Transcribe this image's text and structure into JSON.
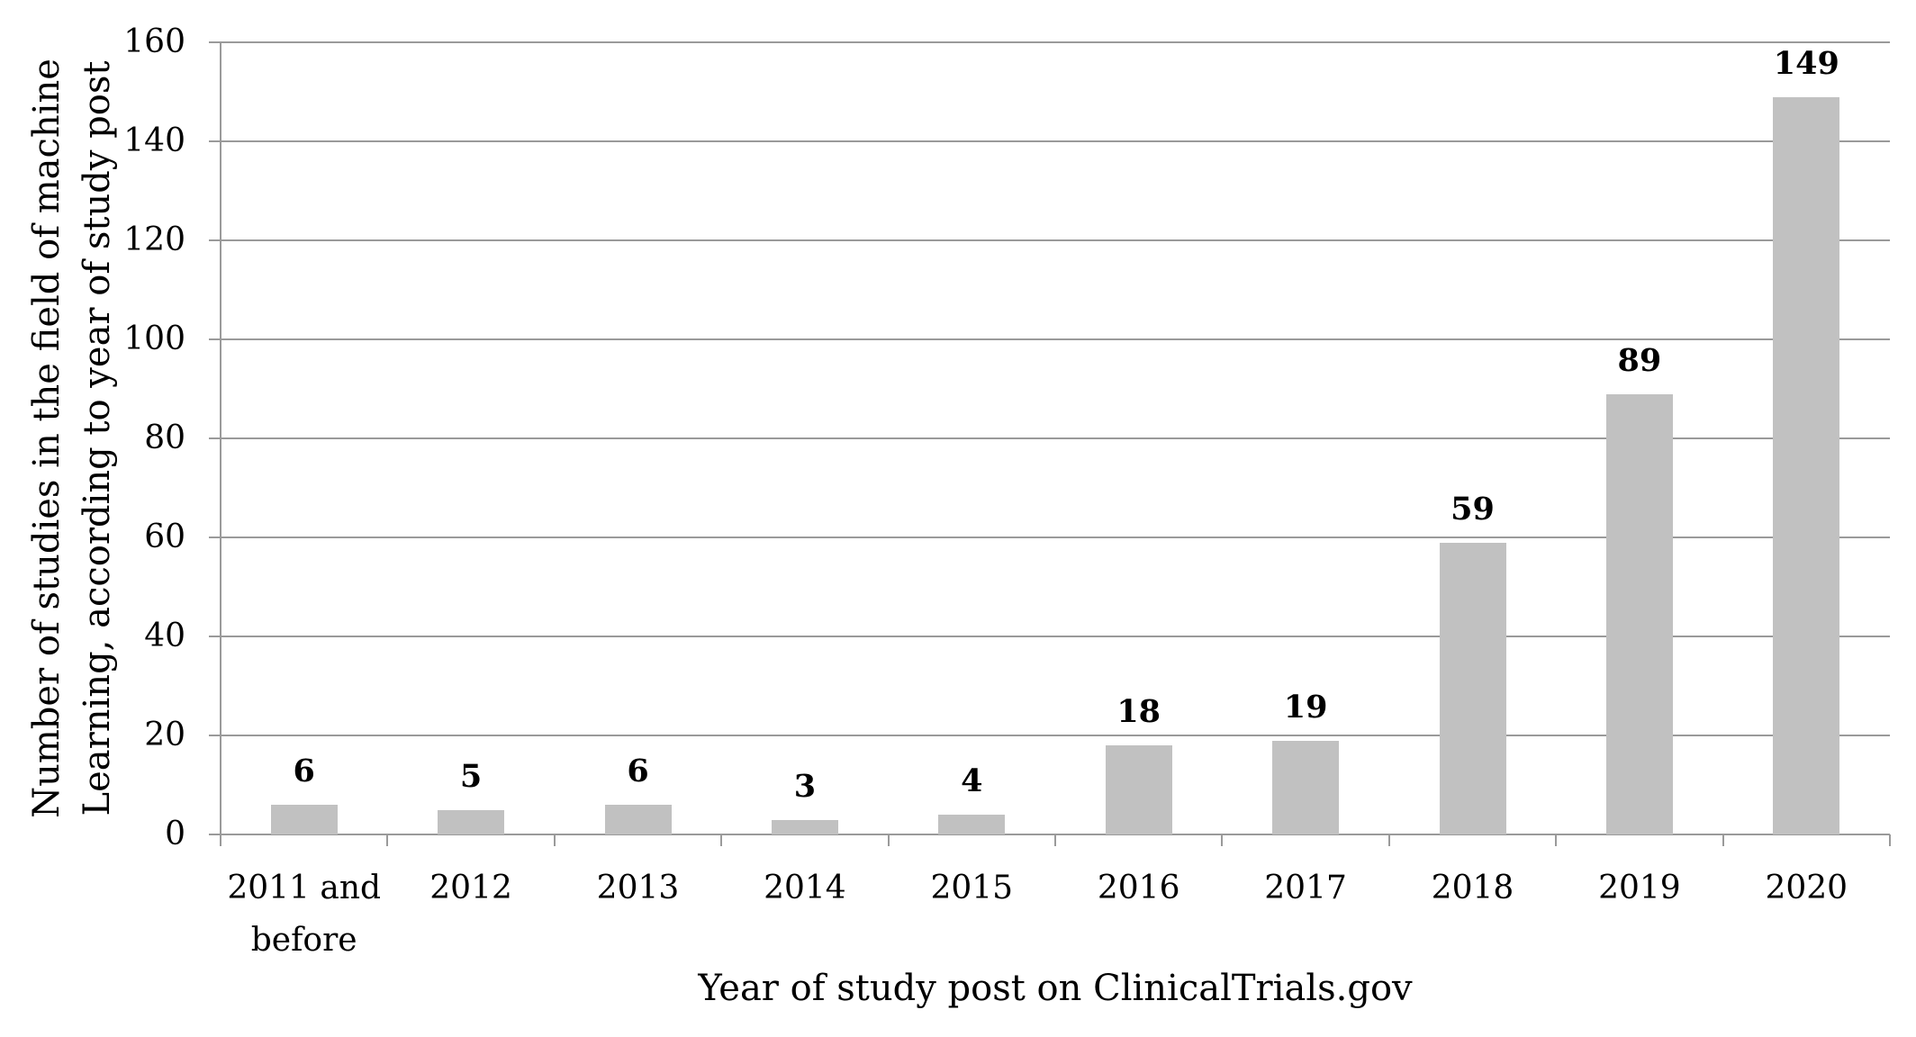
{
  "chart_data": {
    "type": "bar",
    "title": "",
    "categories": [
      "2011 and before",
      "2012",
      "2013",
      "2014",
      "2015",
      "2016",
      "2017",
      "2018",
      "2019",
      "2020"
    ],
    "values": [
      6,
      5,
      6,
      3,
      4,
      18,
      19,
      59,
      89,
      149
    ],
    "data_labels": [
      "6",
      "5",
      "6",
      "3",
      "4",
      "18",
      "19",
      "59",
      "89",
      "149"
    ],
    "xlabel": "Year of study post on ClinicalTrials.gov",
    "ylabel": "Number of studies in the field of machine\nLearning, according to year of study post",
    "ylim": [
      0,
      160
    ],
    "ytick_step": 20,
    "ytick_labels": [
      "0",
      "20",
      "40",
      "60",
      "80",
      "100",
      "120",
      "140",
      "160"
    ],
    "grid": true,
    "legend": "none",
    "bar_color": "#c1c1c1",
    "gridline_color": "#9a9a9a",
    "text_color": "#000000",
    "background_color": "#ffffff"
  }
}
